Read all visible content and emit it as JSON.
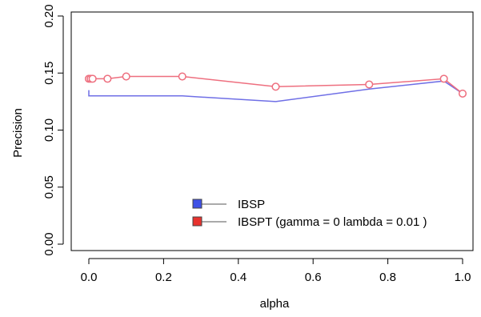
{
  "chart_data": {
    "type": "line",
    "xlabel": "alpha",
    "ylabel": "Precision",
    "xlim": [
      0,
      1
    ],
    "ylim": [
      0,
      0.2
    ],
    "xticks": [
      "0.0",
      "0.2",
      "0.4",
      "0.6",
      "0.8",
      "1.0"
    ],
    "yticks": [
      "0.00",
      "0.05",
      "0.10",
      "0.15",
      "0.20"
    ],
    "grid": false,
    "legend_position": "bottom-center",
    "series": [
      {
        "name": "IBSP",
        "color": "#6f6fe6",
        "marker": "none",
        "x": [
          0.0,
          0.0,
          0.25,
          0.5,
          0.75,
          0.95,
          1.0
        ],
        "y": [
          0.135,
          0.13,
          0.13,
          0.125,
          0.136,
          0.143,
          0.132
        ]
      },
      {
        "name": "IBSPT (gamma = 0 lambda = 0.01 )",
        "color": "#ee6f7f",
        "marker": "open-circle",
        "x": [
          0.0,
          0.005,
          0.01,
          0.05,
          0.1,
          0.25,
          0.5,
          0.75,
          0.95,
          1.0
        ],
        "y": [
          0.145,
          0.145,
          0.145,
          0.145,
          0.147,
          0.147,
          0.138,
          0.14,
          0.145,
          0.132
        ]
      }
    ],
    "legend": {
      "entries": [
        {
          "label": "IBSP",
          "swatch_color": "#3f51e6"
        },
        {
          "label": "IBSPT (gamma = 0 lambda = 0.01 )",
          "swatch_color": "#e8322e"
        }
      ]
    }
  }
}
